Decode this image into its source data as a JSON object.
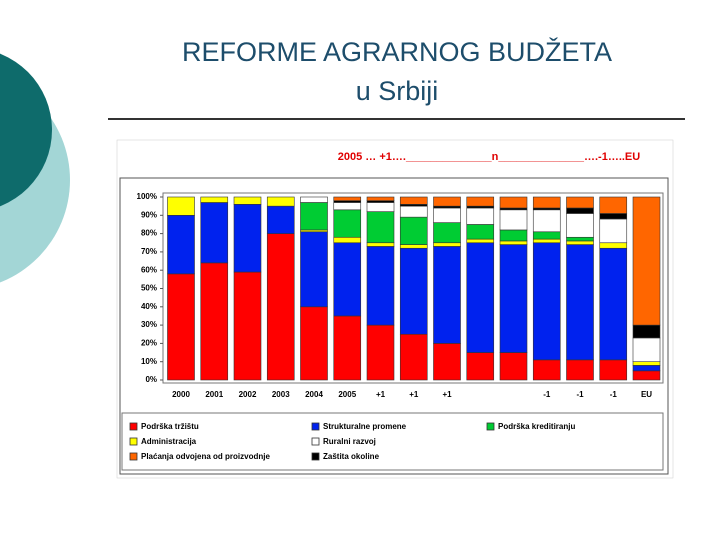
{
  "title": "REFORME AGRARNOG BUDŽETA",
  "subtitle": "u Srbiji",
  "chart_data": {
    "type": "stacked-bar",
    "title": "2005 … +1….______________n______________….-1…..EU",
    "categories": [
      "2000",
      "2001",
      "2002",
      "2003",
      "2004",
      "2005",
      "+1",
      "+1",
      "+1",
      null,
      null,
      "-1",
      "-1",
      "-1",
      "EU"
    ],
    "series": [
      {
        "name": "Podrška tržištu",
        "color": "#ff0000",
        "values": [
          58,
          64,
          59,
          80,
          40,
          35,
          30,
          25,
          20,
          15,
          15,
          11,
          11,
          11,
          5
        ]
      },
      {
        "name": "Strukturalne promene",
        "color": "#0022ee",
        "values": [
          32,
          33,
          37,
          15,
          41,
          40,
          43,
          47,
          53,
          60,
          59,
          64,
          63,
          61,
          3
        ]
      },
      {
        "name": "Administracija",
        "color": "#ffff00",
        "values": [
          10,
          3,
          4,
          5,
          1,
          3,
          2,
          2,
          2,
          2,
          2,
          2,
          2,
          3,
          2
        ]
      },
      {
        "name": "Podrška kreditiranju",
        "color": "#00cc33",
        "values": [
          0,
          0,
          0,
          0,
          15,
          15,
          17,
          15,
          11,
          8,
          6,
          4,
          2,
          0,
          0
        ]
      },
      {
        "name": "Ruralni razvoj",
        "color": "#ffffff",
        "values": [
          0,
          0,
          0,
          0,
          3,
          4,
          5,
          6,
          8,
          9,
          11,
          12,
          13,
          13,
          13
        ]
      },
      {
        "name": "Zaštita okoline",
        "color": "#000000",
        "values": [
          0,
          0,
          0,
          0,
          0,
          1,
          1,
          1,
          1,
          1,
          1,
          1,
          3,
          3,
          7
        ]
      },
      {
        "name": "Plaćanja odvojena od proizvodnje",
        "color": "#ff6600",
        "values": [
          0,
          0,
          0,
          0,
          0,
          2,
          2,
          4,
          5,
          5,
          6,
          6,
          6,
          9,
          70
        ]
      }
    ],
    "ylim": [
      0,
      100
    ],
    "yticks": [
      {
        "value": 0,
        "label": "0%"
      },
      {
        "value": 10,
        "label": "10%"
      },
      {
        "value": 20,
        "label": "20%"
      },
      {
        "value": 30,
        "label": "30%"
      },
      {
        "value": 40,
        "label": "40%"
      },
      {
        "value": 50,
        "label": "50%"
      },
      {
        "value": 60,
        "label": "60%"
      },
      {
        "value": 70,
        "label": "70%"
      },
      {
        "value": 80,
        "label": "80%"
      },
      {
        "value": 90,
        "label": "90%"
      },
      {
        "value": 100,
        "label": "100%"
      }
    ]
  }
}
